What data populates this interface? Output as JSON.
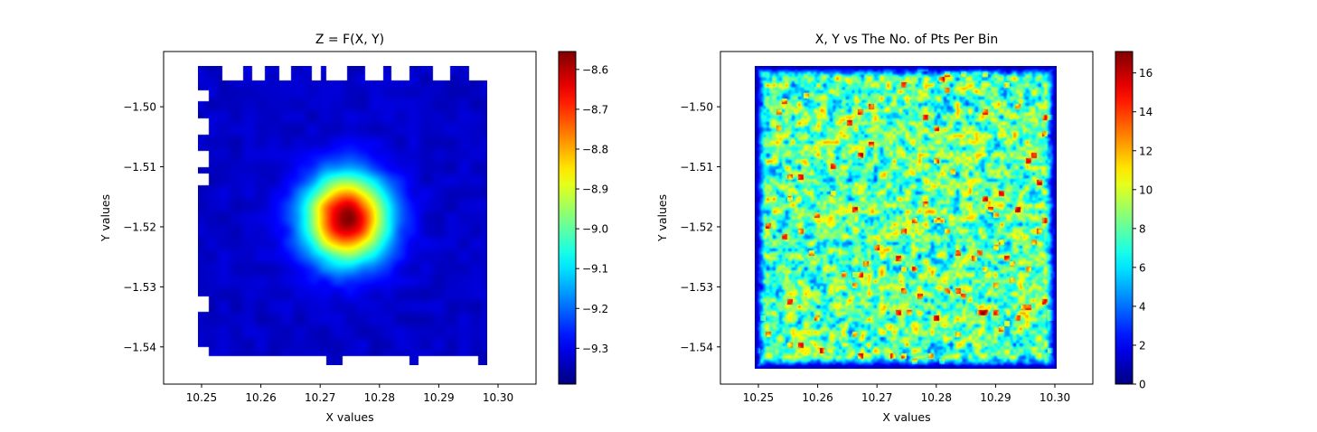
{
  "chart_data": [
    {
      "type": "heatmap",
      "title": "Z = F(X, Y)",
      "xlabel": "X values",
      "ylabel": "Y values",
      "xlim": [
        10.2436,
        10.3064
      ],
      "ylim": [
        -1.5462,
        -1.4908
      ],
      "xticks": [
        10.25,
        10.26,
        10.27,
        10.28,
        10.29,
        10.3
      ],
      "xtick_labels": [
        "10.25",
        "10.26",
        "10.27",
        "10.28",
        "10.29",
        "10.30"
      ],
      "yticks": [
        -1.5,
        -1.51,
        -1.52,
        -1.53,
        -1.54
      ],
      "ytick_labels": [
        "−1.50",
        "−1.51",
        "−1.52",
        "−1.53",
        "−1.54"
      ],
      "colormap": "jet",
      "colorbar": {
        "range": [
          -9.39,
          -8.555
        ],
        "ticks": [
          -8.6,
          -8.7,
          -8.8,
          -8.9,
          -9.0,
          -9.1,
          -9.2,
          -9.3
        ],
        "tick_labels": [
          "−8.6",
          "−8.7",
          "−8.8",
          "−8.9",
          "−9.0",
          "−9.1",
          "−9.2",
          "−9.3"
        ]
      },
      "data_extent": {
        "x": [
          10.2494,
          10.2982
        ],
        "y": [
          -1.5431,
          -1.4932
        ]
      },
      "peak": {
        "x": 10.2744,
        "y": -1.5186,
        "z": -8.57
      },
      "background_z": -9.33
    },
    {
      "type": "heatmap",
      "title": "X, Y vs The No. of Pts Per Bin",
      "xlabel": "X values",
      "ylabel": "Y values",
      "xlim": [
        10.2436,
        10.3064
      ],
      "ylim": [
        -1.5462,
        -1.4908
      ],
      "xticks": [
        10.25,
        10.26,
        10.27,
        10.28,
        10.29,
        10.3
      ],
      "xtick_labels": [
        "10.25",
        "10.26",
        "10.27",
        "10.28",
        "10.29",
        "10.30"
      ],
      "yticks": [
        -1.5,
        -1.51,
        -1.52,
        -1.53,
        -1.54
      ],
      "ytick_labels": [
        "−1.50",
        "−1.51",
        "−1.52",
        "−1.53",
        "−1.54"
      ],
      "colormap": "jet",
      "colorbar": {
        "range": [
          0,
          17.1
        ],
        "ticks": [
          0,
          2,
          4,
          6,
          8,
          10,
          12,
          14,
          16
        ],
        "tick_labels": [
          "0",
          "2",
          "4",
          "6",
          "8",
          "10",
          "12",
          "14",
          "16"
        ]
      },
      "data_extent": {
        "x": [
          10.2494,
          10.3003
        ],
        "y": [
          -1.5436,
          -1.4932
        ]
      },
      "typical_count": 8
    }
  ]
}
